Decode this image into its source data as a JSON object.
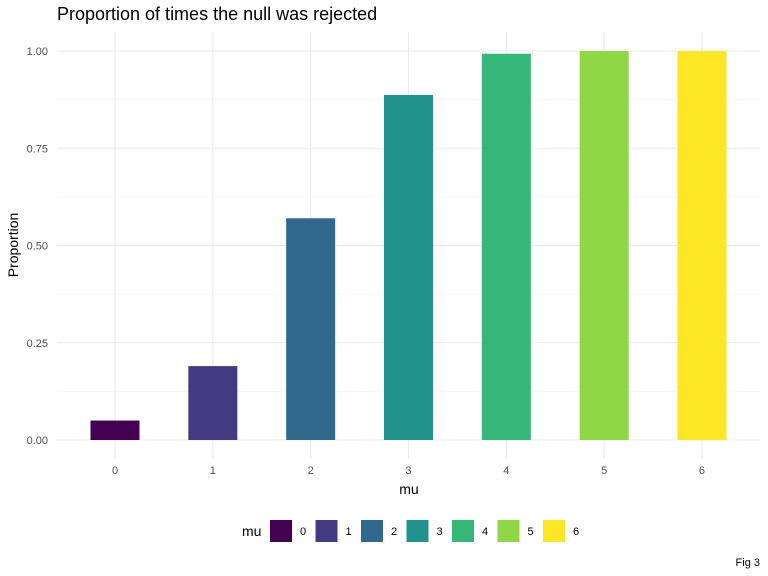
{
  "chart_data": {
    "type": "bar",
    "title": "Proportion of times the null was rejected",
    "xlabel": "mu",
    "ylabel": "Proportion",
    "categories": [
      "0",
      "1",
      "2",
      "3",
      "4",
      "5",
      "6"
    ],
    "values": [
      0.05,
      0.19,
      0.57,
      0.887,
      0.993,
      1.0,
      1.0
    ],
    "colors": [
      "#440154",
      "#443983",
      "#31688e",
      "#21918c",
      "#35b779",
      "#8fd744",
      "#fde725"
    ],
    "ylim": [
      0,
      1.0
    ],
    "yticks": [
      "0.00",
      "0.25",
      "0.50",
      "0.75",
      "1.00"
    ],
    "ytick_values": [
      0,
      0.25,
      0.5,
      0.75,
      1.0
    ],
    "grid": true,
    "legend": {
      "title": "mu",
      "position": "bottom",
      "entries": [
        "0",
        "1",
        "2",
        "3",
        "4",
        "5",
        "6"
      ]
    },
    "caption": "Fig 3"
  }
}
